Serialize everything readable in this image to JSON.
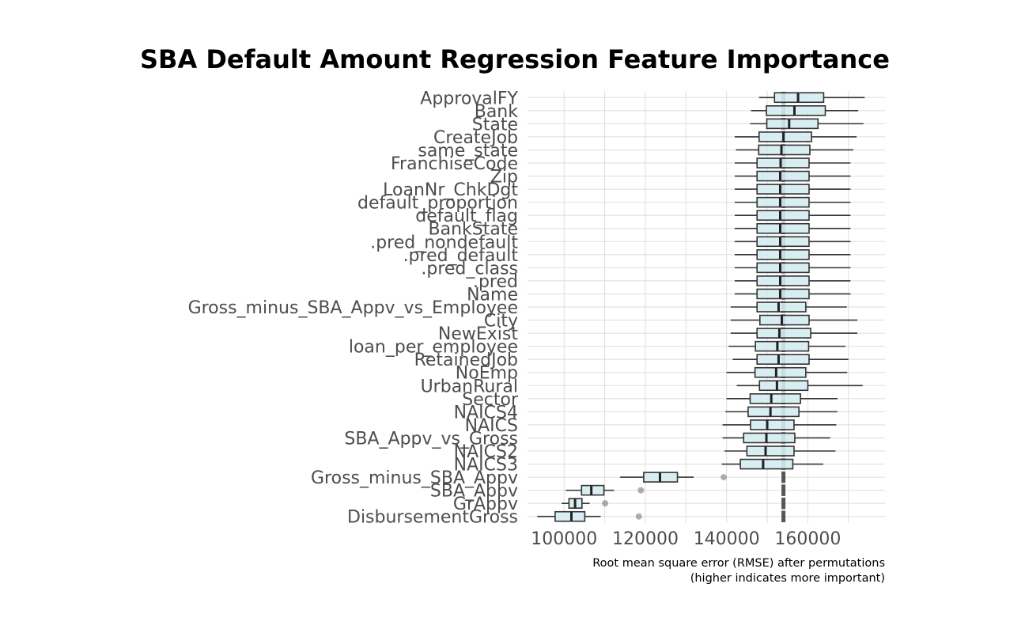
{
  "chart_data": {
    "type": "boxplot",
    "title": "SBA Default Amount Regression Feature Importance",
    "xlabel_lines": [
      "Root mean square error (RMSE) after permutations",
      "(higher indicates more important)"
    ],
    "xlim": [
      91000,
      179000
    ],
    "xticks": [
      100000,
      120000,
      140000,
      160000
    ],
    "x_tick_labels": [
      "100000",
      "120000",
      "140000",
      "160000"
    ],
    "baseline_rmse": 154000,
    "grid": true,
    "box_fill": "#d5ecf1",
    "box_stroke": "#333333",
    "baseline_color": "#4d4d4d",
    "features": [
      {
        "name": "ApprovalFY",
        "lo": 148000,
        "q1": 151800,
        "med": 157600,
        "q3": 163900,
        "hi": 174000,
        "outliers": []
      },
      {
        "name": "Bank",
        "lo": 146000,
        "q1": 149800,
        "med": 156700,
        "q3": 164300,
        "hi": 172400,
        "outliers": []
      },
      {
        "name": "State",
        "lo": 145800,
        "q1": 149900,
        "med": 155400,
        "q3": 162500,
        "hi": 173700,
        "outliers": []
      },
      {
        "name": "CreateJob",
        "lo": 142000,
        "q1": 148000,
        "med": 154000,
        "q3": 160900,
        "hi": 172000,
        "outliers": []
      },
      {
        "name": "same_state",
        "lo": 142300,
        "q1": 147900,
        "med": 153500,
        "q3": 160500,
        "hi": 171200,
        "outliers": []
      },
      {
        "name": "FranchiseCode",
        "lo": 142000,
        "q1": 147500,
        "med": 153300,
        "q3": 160300,
        "hi": 170500,
        "outliers": []
      },
      {
        "name": "Zip",
        "lo": 142000,
        "q1": 147500,
        "med": 153200,
        "q3": 160300,
        "hi": 170500,
        "outliers": []
      },
      {
        "name": "LoanNr_ChkDgt",
        "lo": 142000,
        "q1": 147500,
        "med": 153200,
        "q3": 160300,
        "hi": 170500,
        "outliers": []
      },
      {
        "name": "default_proportion",
        "lo": 142000,
        "q1": 147500,
        "med": 153200,
        "q3": 160300,
        "hi": 170500,
        "outliers": []
      },
      {
        "name": "default_flag",
        "lo": 142000,
        "q1": 147500,
        "med": 153200,
        "q3": 160300,
        "hi": 170500,
        "outliers": []
      },
      {
        "name": "BankState",
        "lo": 142000,
        "q1": 147500,
        "med": 153200,
        "q3": 160300,
        "hi": 170500,
        "outliers": []
      },
      {
        "name": ".pred_nondefault",
        "lo": 142000,
        "q1": 147500,
        "med": 153200,
        "q3": 160300,
        "hi": 170500,
        "outliers": []
      },
      {
        "name": ".pred_default",
        "lo": 142000,
        "q1": 147500,
        "med": 153200,
        "q3": 160300,
        "hi": 170500,
        "outliers": []
      },
      {
        "name": ".pred_class",
        "lo": 142000,
        "q1": 147500,
        "med": 153200,
        "q3": 160300,
        "hi": 170500,
        "outliers": []
      },
      {
        "name": ".pred",
        "lo": 142000,
        "q1": 147500,
        "med": 153200,
        "q3": 160300,
        "hi": 170500,
        "outliers": []
      },
      {
        "name": "Name",
        "lo": 142000,
        "q1": 147500,
        "med": 153200,
        "q3": 160300,
        "hi": 170500,
        "outliers": []
      },
      {
        "name": "Gross_minus_SBA_Appv_vs_Employee",
        "lo": 141000,
        "q1": 147500,
        "med": 152800,
        "q3": 159500,
        "hi": 169600,
        "outliers": []
      },
      {
        "name": "City",
        "lo": 141000,
        "q1": 148200,
        "med": 153600,
        "q3": 160300,
        "hi": 172200,
        "outliers": []
      },
      {
        "name": "NewExist",
        "lo": 141000,
        "q1": 147500,
        "med": 153000,
        "q3": 160700,
        "hi": 172200,
        "outliers": []
      },
      {
        "name": "loan_per_employee",
        "lo": 140500,
        "q1": 147100,
        "med": 152500,
        "q3": 160200,
        "hi": 169300,
        "outliers": []
      },
      {
        "name": "RetainedJob",
        "lo": 141500,
        "q1": 147500,
        "med": 152800,
        "q3": 160300,
        "hi": 170000,
        "outliers": []
      },
      {
        "name": "NoEmp",
        "lo": 140000,
        "q1": 147000,
        "med": 152200,
        "q3": 159500,
        "hi": 169700,
        "outliers": []
      },
      {
        "name": "UrbanRural",
        "lo": 142500,
        "q1": 148100,
        "med": 152400,
        "q3": 160000,
        "hi": 173500,
        "outliers": []
      },
      {
        "name": "Sector",
        "lo": 140000,
        "q1": 145800,
        "med": 151000,
        "q3": 158200,
        "hi": 167300,
        "outliers": []
      },
      {
        "name": "NAICS4",
        "lo": 139700,
        "q1": 145300,
        "med": 150800,
        "q3": 157800,
        "hi": 167300,
        "outliers": []
      },
      {
        "name": "NAICS",
        "lo": 139000,
        "q1": 145900,
        "med": 150000,
        "q3": 156600,
        "hi": 167000,
        "outliers": []
      },
      {
        "name": "SBA_Appv_vs_Gross",
        "lo": 139000,
        "q1": 144200,
        "med": 149800,
        "q3": 156800,
        "hi": 165500,
        "outliers": []
      },
      {
        "name": "NAICS2",
        "lo": 139500,
        "q1": 145000,
        "med": 149600,
        "q3": 156600,
        "hi": 166800,
        "outliers": []
      },
      {
        "name": "NAICS3",
        "lo": 138800,
        "q1": 143400,
        "med": 149000,
        "q3": 156300,
        "hi": 163800,
        "outliers": []
      },
      {
        "name": "Gross_minus_SBA_Appv",
        "lo": 113800,
        "q1": 119600,
        "med": 123600,
        "q3": 127900,
        "hi": 131900,
        "outliers": [
          139300
        ]
      },
      {
        "name": "SBA_Appv",
        "lo": 100400,
        "q1": 104300,
        "med": 106700,
        "q3": 109800,
        "hi": 112300,
        "outliers": [
          118900
        ]
      },
      {
        "name": "GrAppv",
        "lo": 99400,
        "q1": 101200,
        "med": 102700,
        "q3": 104400,
        "hi": 106300,
        "outliers": [
          110100
        ]
      },
      {
        "name": "DisbursementGross",
        "lo": 93400,
        "q1": 97800,
        "med": 101800,
        "q3": 105100,
        "hi": 109000,
        "outliers": [
          118400
        ]
      }
    ]
  }
}
